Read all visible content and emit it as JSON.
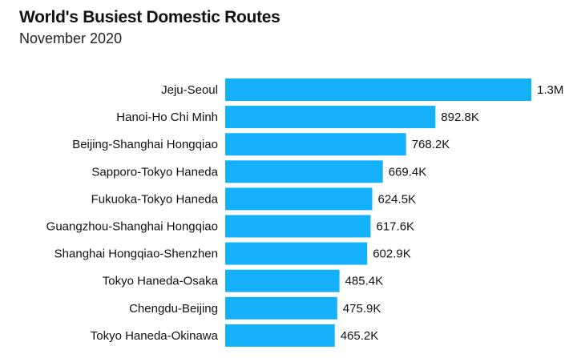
{
  "title": "World's Busiest Domestic Routes",
  "subtitle": "November 2020",
  "colors": {
    "bar": "#14b1fa",
    "text": "#111111",
    "background": "#ffffff"
  },
  "chart_data": {
    "type": "bar",
    "orientation": "horizontal",
    "title": "World's Busiest Domestic Routes",
    "subtitle": "November 2020",
    "xlabel": "",
    "ylabel": "",
    "grid": false,
    "categories": [
      "Jeju-Seoul",
      "Hanoi-Ho Chi Minh",
      "Beijing-Shanghai Hongqiao",
      "Sapporo-Tokyo Haneda",
      "Fukuoka-Tokyo Haneda",
      "Guangzhou-Shanghai Hongqiao",
      "Shanghai Hongqiao-Shenzhen",
      "Tokyo Haneda-Osaka",
      "Chengdu-Beijing",
      "Tokyo Haneda-Okinawa"
    ],
    "values": [
      1300000,
      892800,
      768200,
      669400,
      624500,
      617600,
      602900,
      485400,
      475900,
      465200
    ],
    "value_labels": [
      "1.3M",
      "892.8K",
      "768.2K",
      "669.4K",
      "624.5K",
      "617.6K",
      "602.9K",
      "485.4K",
      "475.9K",
      "465.2K"
    ]
  }
}
